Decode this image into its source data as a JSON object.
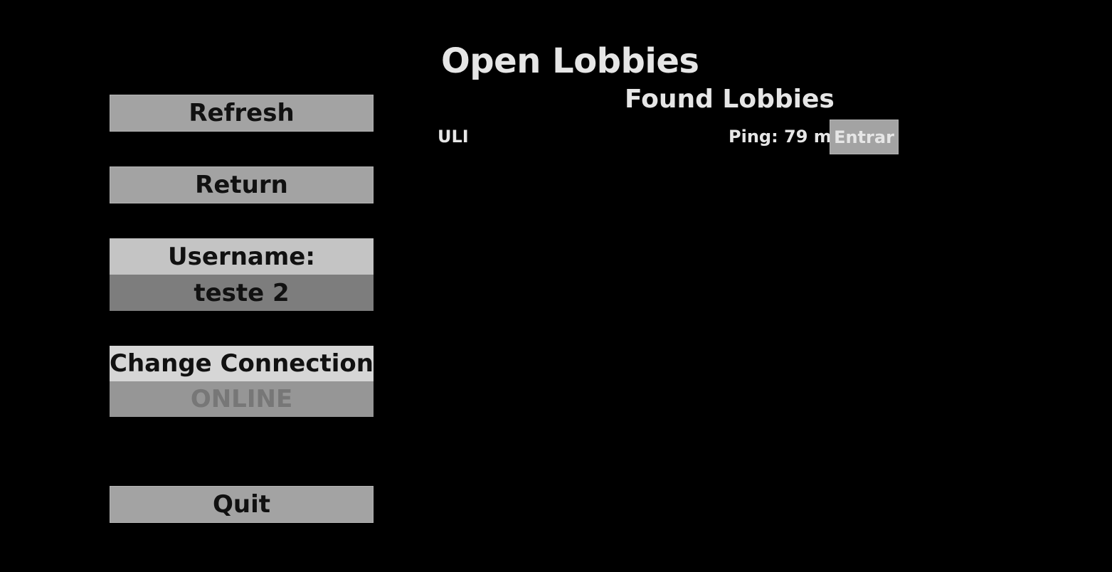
{
  "header": {
    "title": "Open Lobbies",
    "subtitle": "Found Lobbies"
  },
  "menu": {
    "refresh_label": "Refresh",
    "return_label": "Return",
    "username_label": "Username:",
    "username_value": "teste 2",
    "connection_label": "Change Connection",
    "connection_value": "ONLINE",
    "quit_label": "Quit"
  },
  "lobbies": [
    {
      "name": "ULI",
      "ping": "Ping: 79 ms",
      "join_label": "Entrar"
    }
  ],
  "colors": {
    "background": "#000000",
    "button": "#a3a3a3",
    "text_light": "#e6e6e6",
    "text_dark": "#111111"
  }
}
